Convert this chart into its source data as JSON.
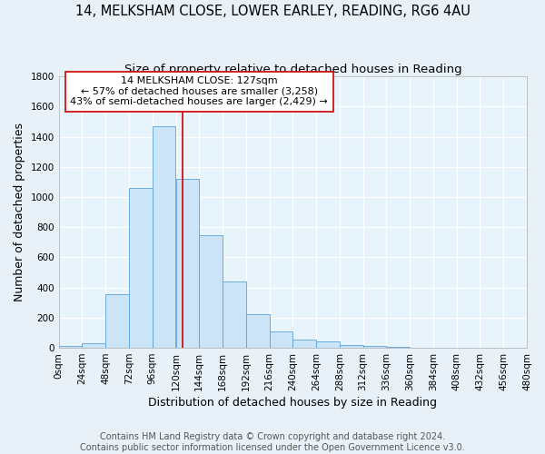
{
  "title": "14, MELKSHAM CLOSE, LOWER EARLEY, READING, RG6 4AU",
  "subtitle": "Size of property relative to detached houses in Reading",
  "xlabel": "Distribution of detached houses by size in Reading",
  "ylabel": "Number of detached properties",
  "footer_line1": "Contains HM Land Registry data © Crown copyright and database right 2024.",
  "footer_line2": "Contains public sector information licensed under the Open Government Licence v3.0.",
  "bin_edges": [
    0,
    24,
    48,
    72,
    96,
    120,
    144,
    168,
    192,
    216,
    240,
    264,
    288,
    312,
    336,
    360,
    384,
    408,
    432,
    456,
    480
  ],
  "bar_heights": [
    15,
    30,
    355,
    1060,
    1470,
    1120,
    745,
    440,
    225,
    110,
    55,
    45,
    20,
    15,
    5,
    3,
    2,
    2,
    2,
    2
  ],
  "bar_color": "#cce4f7",
  "bar_edge_color": "#5ba3d9",
  "vline_x": 127,
  "vline_color": "#cc0000",
  "annotation_title": "14 MELKSHAM CLOSE: 127sqm",
  "annotation_line1": "← 57% of detached houses are smaller (3,258)",
  "annotation_line2": "43% of semi-detached houses are larger (2,429) →",
  "annotation_box_edge_color": "#cc0000",
  "ylim": [
    0,
    1800
  ],
  "yticks": [
    0,
    200,
    400,
    600,
    800,
    1000,
    1200,
    1400,
    1600,
    1800
  ],
  "xtick_labels": [
    "0sqm",
    "24sqm",
    "48sqm",
    "72sqm",
    "96sqm",
    "120sqm",
    "144sqm",
    "168sqm",
    "192sqm",
    "216sqm",
    "240sqm",
    "264sqm",
    "288sqm",
    "312sqm",
    "336sqm",
    "360sqm",
    "384sqm",
    "408sqm",
    "432sqm",
    "456sqm",
    "480sqm"
  ],
  "background_color": "#e8f1f8",
  "plot_bg_color": "#e8f4fb",
  "grid_color": "#ffffff",
  "title_fontsize": 10.5,
  "subtitle_fontsize": 9.5,
  "axis_label_fontsize": 9,
  "tick_fontsize": 7.5,
  "footer_fontsize": 7,
  "annotation_fontsize": 8
}
